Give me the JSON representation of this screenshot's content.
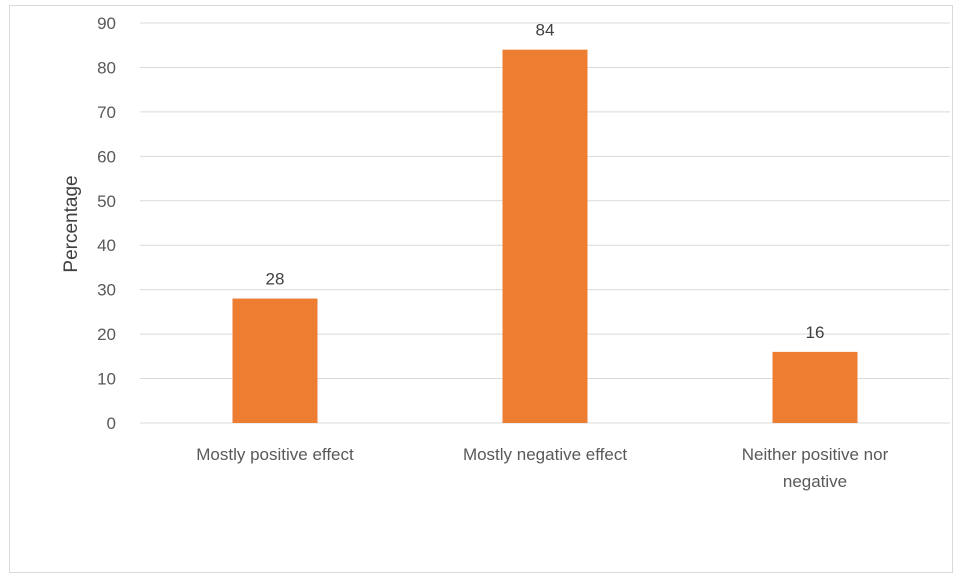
{
  "chart_data": {
    "type": "bar",
    "categories": [
      [
        "Mostly positive effect"
      ],
      [
        "Mostly negative effect"
      ],
      [
        "Neither positive nor",
        "negative"
      ]
    ],
    "values": [
      28,
      84,
      16
    ],
    "data_labels": [
      "28",
      "84",
      "16"
    ],
    "ylabel": "Percentage",
    "ylim": [
      0,
      90
    ],
    "yticks": [
      0,
      10,
      20,
      30,
      40,
      50,
      60,
      70,
      80,
      90
    ],
    "grid": true,
    "bar_color": "#ED7D31",
    "grid_color": "#D9D9D9"
  }
}
